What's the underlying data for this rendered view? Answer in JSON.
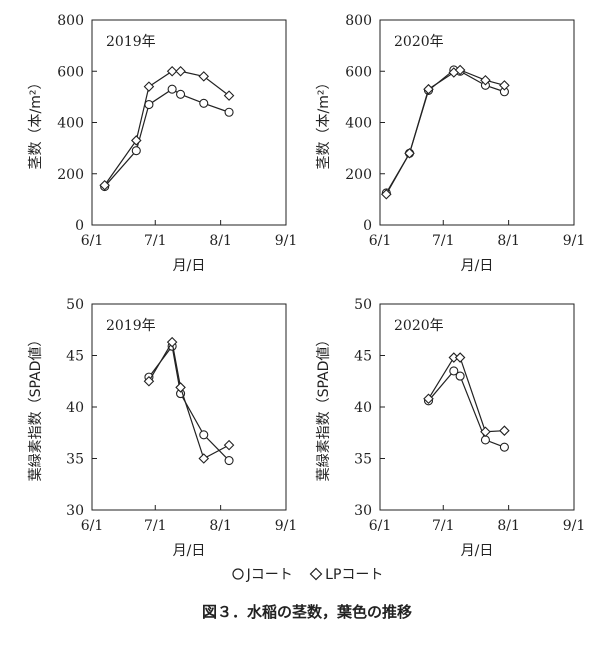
{
  "chart_data": [
    {
      "type": "line",
      "title": "2019年",
      "xlabel": "月/日",
      "ylabel": "茎数（本/m²）",
      "xlim": [
        "06-01",
        "09-01"
      ],
      "ylim": [
        0,
        800
      ],
      "x_ticks": [
        "6/1",
        "7/1",
        "8/1",
        "9/1"
      ],
      "y_ticks": [
        "0",
        "200",
        "400",
        "600",
        "800"
      ],
      "series": [
        {
          "name": "Jコート",
          "marker": "circle",
          "x": [
            "06-07",
            "06-22",
            "06-28",
            "07-09",
            "07-13",
            "07-24",
            "08-05"
          ],
          "values": [
            150,
            290,
            470,
            530,
            510,
            475,
            440
          ]
        },
        {
          "name": "LPコート",
          "marker": "diamond",
          "x": [
            "06-07",
            "06-22",
            "06-28",
            "07-09",
            "07-13",
            "07-24",
            "08-05"
          ],
          "values": [
            155,
            330,
            540,
            600,
            600,
            580,
            505
          ]
        }
      ]
    },
    {
      "type": "line",
      "title": "2020年",
      "xlabel": "月/日",
      "ylabel": "茎数（本/m²）",
      "xlim": [
        "06-01",
        "09-01"
      ],
      "ylim": [
        0,
        800
      ],
      "x_ticks": [
        "6/1",
        "7/1",
        "8/1",
        "9/1"
      ],
      "y_ticks": [
        "0",
        "200",
        "400",
        "600",
        "800"
      ],
      "series": [
        {
          "name": "Jコート",
          "marker": "circle",
          "x": [
            "06-04",
            "06-15",
            "06-24",
            "07-06",
            "07-09",
            "07-21",
            "07-30"
          ],
          "values": [
            125,
            280,
            525,
            605,
            600,
            545,
            520
          ]
        },
        {
          "name": "LPコート",
          "marker": "diamond",
          "x": [
            "06-04",
            "06-15",
            "06-24",
            "07-06",
            "07-09",
            "07-21",
            "07-30"
          ],
          "values": [
            120,
            280,
            530,
            595,
            605,
            565,
            545
          ]
        }
      ]
    },
    {
      "type": "line",
      "title": "2019年",
      "xlabel": "月/日",
      "ylabel": "葉緑素指数（SPAD値）",
      "xlim": [
        "06-01",
        "09-01"
      ],
      "ylim": [
        30,
        50
      ],
      "x_ticks": [
        "6/1",
        "7/1",
        "8/1",
        "9/1"
      ],
      "y_ticks": [
        "30",
        "35",
        "40",
        "45",
        "50"
      ],
      "series": [
        {
          "name": "Jコート",
          "marker": "circle",
          "x": [
            "06-28",
            "07-09",
            "07-13",
            "07-24",
            "08-05"
          ],
          "values": [
            42.9,
            45.9,
            41.3,
            37.3,
            34.8
          ]
        },
        {
          "name": "LPコート",
          "marker": "diamond",
          "x": [
            "06-28",
            "07-09",
            "07-13",
            "07-24",
            "08-05"
          ],
          "values": [
            42.5,
            46.3,
            41.9,
            35.0,
            36.3
          ]
        }
      ]
    },
    {
      "type": "line",
      "title": "2020年",
      "xlabel": "月/日",
      "ylabel": "葉緑素指数（SPAD値）",
      "xlim": [
        "06-01",
        "09-01"
      ],
      "ylim": [
        30,
        50
      ],
      "x_ticks": [
        "6/1",
        "7/1",
        "8/1",
        "9/1"
      ],
      "y_ticks": [
        "30",
        "35",
        "40",
        "45",
        "50"
      ],
      "series": [
        {
          "name": "Jコート",
          "marker": "circle",
          "x": [
            "06-24",
            "07-06",
            "07-09",
            "07-21",
            "07-30"
          ],
          "values": [
            40.6,
            43.5,
            43.0,
            36.8,
            36.1
          ]
        },
        {
          "name": "LPコート",
          "marker": "diamond",
          "x": [
            "06-24",
            "07-06",
            "07-09",
            "07-21",
            "07-30"
          ],
          "values": [
            40.8,
            44.8,
            44.8,
            37.6,
            37.7
          ]
        }
      ]
    }
  ],
  "legend": [
    {
      "marker": "circle",
      "label": "Jコート"
    },
    {
      "marker": "diamond",
      "label": "LPコート"
    }
  ],
  "caption": "図３．水稲の茎数，葉色の推移"
}
